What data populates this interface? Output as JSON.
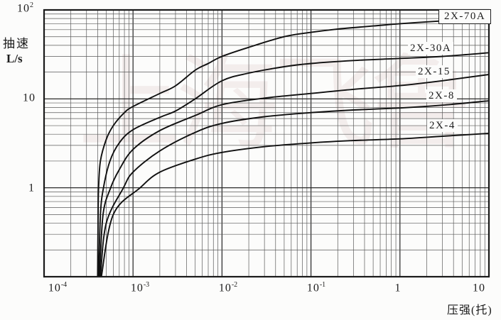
{
  "axes": {
    "x": {
      "title": "压强(托)",
      "scale": "log",
      "ticks": [
        {
          "base": "10",
          "exp": "-4"
        },
        {
          "base": "10",
          "exp": "-3"
        },
        {
          "base": "10",
          "exp": "-2"
        },
        {
          "base": "10",
          "exp": "-1"
        },
        {
          "base": "1",
          "exp": ""
        },
        {
          "base": "10",
          "exp": ""
        }
      ]
    },
    "y": {
      "title_top": "抽速",
      "title_bottom": "L/s",
      "scale": "log",
      "ticks": [
        {
          "base": "10",
          "exp": "2"
        },
        {
          "base": "10",
          "exp": ""
        },
        {
          "base": "1",
          "exp": ""
        }
      ]
    }
  },
  "watermark": "上海飞鲁",
  "colors": {
    "background": "#fcfcfb",
    "curve": "#101010",
    "grid_major": "#2b2b2b",
    "grid_minor": "#5a5a5a",
    "watermark": "rgba(186,140,140,0.13)"
  },
  "chart_data": {
    "type": "line",
    "title": "",
    "xlabel": "压强(托)",
    "ylabel": "抽速 L/s",
    "x_scale": "log",
    "y_scale": "log",
    "xlim": [
      0.0001,
      10
    ],
    "ylim": [
      0.1,
      100
    ],
    "grid": "log-log both axes, minor decades 2-9",
    "legend_position": "labels on curves, right side",
    "series": [
      {
        "name": "2X-70A",
        "points": [
          [
            0.0004,
            0.1
          ],
          [
            0.000405,
            0.5
          ],
          [
            0.00041,
            1
          ],
          [
            0.00043,
            2
          ],
          [
            0.0005,
            3.5
          ],
          [
            0.0006,
            5
          ],
          [
            0.0008,
            7
          ],
          [
            0.001,
            8.2
          ],
          [
            0.002,
            11.5
          ],
          [
            0.003,
            14
          ],
          [
            0.005,
            21
          ],
          [
            0.007,
            25
          ],
          [
            0.01,
            30
          ],
          [
            0.02,
            38
          ],
          [
            0.05,
            50
          ],
          [
            0.1,
            56
          ],
          [
            0.2,
            61
          ],
          [
            0.5,
            66
          ],
          [
            1,
            70
          ],
          [
            2.8,
            75
          ]
        ]
      },
      {
        "name": "2X-30A",
        "points": [
          [
            0.00041,
            0.1
          ],
          [
            0.00043,
            0.5
          ],
          [
            0.000465,
            1
          ],
          [
            0.00055,
            2
          ],
          [
            0.0007,
            3.2
          ],
          [
            0.001,
            4.5
          ],
          [
            0.002,
            6.2
          ],
          [
            0.003,
            7.3
          ],
          [
            0.005,
            10
          ],
          [
            0.01,
            16
          ],
          [
            0.02,
            19.5
          ],
          [
            0.05,
            23
          ],
          [
            0.1,
            25
          ],
          [
            0.3,
            27
          ],
          [
            1,
            28.5
          ],
          [
            3,
            30
          ],
          [
            10,
            33
          ]
        ]
      },
      {
        "name": "2X-15",
        "points": [
          [
            0.00042,
            0.1
          ],
          [
            0.00046,
            0.5
          ],
          [
            0.00056,
            1
          ],
          [
            0.0007,
            1.6
          ],
          [
            0.001,
            2.7
          ],
          [
            0.002,
            4.4
          ],
          [
            0.005,
            6.5
          ],
          [
            0.01,
            8.6
          ],
          [
            0.03,
            10.2
          ],
          [
            0.1,
            11.5
          ],
          [
            0.3,
            12.8
          ],
          [
            1,
            14.1
          ],
          [
            3,
            16
          ],
          [
            10,
            18.8
          ]
        ]
      },
      {
        "name": "2X-8",
        "points": [
          [
            0.00043,
            0.1
          ],
          [
            0.0005,
            0.4
          ],
          [
            0.00078,
            1
          ],
          [
            0.001,
            1.5
          ],
          [
            0.002,
            2.6
          ],
          [
            0.005,
            4.2
          ],
          [
            0.01,
            5.3
          ],
          [
            0.03,
            6.3
          ],
          [
            0.1,
            7
          ],
          [
            0.3,
            7.5
          ],
          [
            1,
            7.9
          ],
          [
            3,
            8.5
          ],
          [
            10,
            9.5
          ]
        ]
      },
      {
        "name": "2X-4",
        "points": [
          [
            0.00044,
            0.1
          ],
          [
            0.0006,
            0.5
          ],
          [
            0.0012,
            1
          ],
          [
            0.002,
            1.5
          ],
          [
            0.005,
            2.1
          ],
          [
            0.01,
            2.5
          ],
          [
            0.03,
            2.9
          ],
          [
            0.1,
            3.2
          ],
          [
            0.3,
            3.4
          ],
          [
            1,
            3.55
          ],
          [
            3,
            3.8
          ],
          [
            10,
            4.1
          ]
        ]
      }
    ]
  }
}
